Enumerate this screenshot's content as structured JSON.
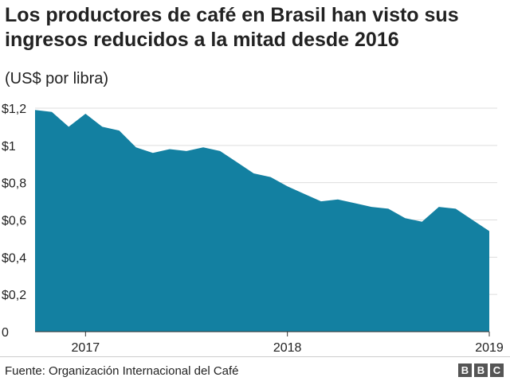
{
  "title": "Los productores de café en Brasil han visto sus ingresos reducidos a la mitad desde 2016",
  "subtitle": "(US$ por libra)",
  "source": "Fuente: Organización Internacional del Café",
  "logo": [
    "B",
    "B",
    "C"
  ],
  "colors": {
    "area": "#1380a1",
    "grid": "#dddddd",
    "axis": "#333333"
  },
  "chart_data": {
    "type": "area",
    "title": "Los productores de café en Brasil han visto sus ingresos reducidos a la mitad desde 2016",
    "ylabel": "(US$ por libra)",
    "ylim": [
      0,
      1.2
    ],
    "xlim": [
      "2016-10",
      "2019-01"
    ],
    "grid": true,
    "y_ticks": [
      {
        "value": 0,
        "label": "0"
      },
      {
        "value": 0.2,
        "label": "$0,2"
      },
      {
        "value": 0.4,
        "label": "$0,4"
      },
      {
        "value": 0.6,
        "label": "$0,6"
      },
      {
        "value": 0.8,
        "label": "$0,8"
      },
      {
        "value": 1.0,
        "label": "$1"
      },
      {
        "value": 1.2,
        "label": "$1,2"
      }
    ],
    "x_ticks": [
      {
        "value": "2017-01",
        "label": "2017"
      },
      {
        "value": "2018-01",
        "label": "2018"
      },
      {
        "value": "2019-01",
        "label": "2019"
      }
    ],
    "x": [
      "2016-10",
      "2016-11",
      "2016-12",
      "2017-01",
      "2017-02",
      "2017-03",
      "2017-04",
      "2017-05",
      "2017-06",
      "2017-07",
      "2017-08",
      "2017-09",
      "2017-10",
      "2017-11",
      "2017-12",
      "2018-01",
      "2018-02",
      "2018-03",
      "2018-04",
      "2018-05",
      "2018-06",
      "2018-07",
      "2018-08",
      "2018-09",
      "2018-10",
      "2018-11",
      "2018-12",
      "2019-01"
    ],
    "values": [
      1.19,
      1.18,
      1.1,
      1.17,
      1.1,
      1.08,
      0.99,
      0.96,
      0.98,
      0.97,
      0.99,
      0.97,
      0.91,
      0.85,
      0.83,
      0.78,
      0.74,
      0.7,
      0.71,
      0.69,
      0.67,
      0.66,
      0.61,
      0.59,
      0.67,
      0.66,
      0.6,
      0.54
    ]
  }
}
